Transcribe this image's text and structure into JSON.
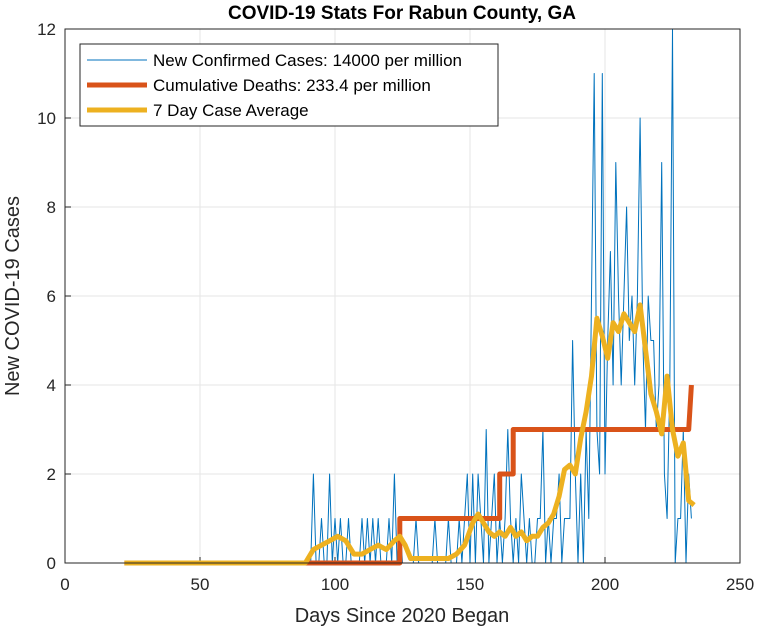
{
  "chart_data": {
    "type": "line",
    "title": "COVID-19 Stats For Rabun County, GA",
    "xlabel": "Days Since 2020 Began",
    "ylabel": "New COVID-19 Cases",
    "xlim": [
      0,
      250
    ],
    "ylim": [
      0,
      12
    ],
    "xticks": [
      0,
      50,
      100,
      150,
      200,
      250
    ],
    "yticks": [
      0,
      2,
      4,
      6,
      8,
      10,
      12
    ],
    "grid": true,
    "legend_position": "top-left",
    "series": [
      {
        "name": "New Confirmed Cases: 14000 per million",
        "color": "#0072BD",
        "width": 1,
        "x": [
          22,
          30,
          40,
          50,
          60,
          70,
          80,
          90,
          91,
          92,
          93,
          94,
          95,
          96,
          97,
          98,
          99,
          100,
          101,
          102,
          103,
          104,
          105,
          106,
          107,
          108,
          109,
          110,
          111,
          112,
          113,
          114,
          115,
          116,
          117,
          118,
          119,
          120,
          121,
          122,
          123,
          124,
          125,
          126,
          127,
          128,
          129,
          130,
          131,
          132,
          133,
          134,
          135,
          136,
          137,
          138,
          139,
          140,
          141,
          142,
          143,
          144,
          145,
          146,
          147,
          148,
          149,
          150,
          151,
          152,
          153,
          154,
          155,
          156,
          157,
          158,
          159,
          160,
          161,
          162,
          163,
          164,
          165,
          166,
          167,
          168,
          169,
          170,
          171,
          172,
          173,
          174,
          175,
          176,
          177,
          178,
          179,
          180,
          181,
          182,
          183,
          184,
          185,
          186,
          187,
          188,
          189,
          190,
          191,
          192,
          193,
          194,
          195,
          196,
          197,
          198,
          199,
          200,
          201,
          202,
          203,
          204,
          205,
          206,
          207,
          208,
          209,
          210,
          211,
          212,
          213,
          214,
          215,
          216,
          217,
          218,
          219,
          220,
          221,
          222,
          223,
          224,
          225,
          226,
          227,
          228,
          229,
          230,
          231,
          232
        ],
        "y": [
          0,
          0,
          0,
          0,
          0,
          0,
          0,
          0,
          0,
          2,
          0,
          0,
          1,
          0,
          0,
          2,
          0,
          1,
          0,
          1,
          0,
          0,
          1,
          0,
          0,
          0,
          0,
          1,
          0,
          1,
          0,
          1,
          0,
          1,
          0,
          0,
          0,
          1,
          0,
          2,
          0,
          1,
          0,
          0,
          0,
          0,
          0,
          1,
          0,
          0,
          0,
          0,
          0,
          0,
          1,
          0,
          0,
          0,
          0,
          1,
          0,
          0,
          0,
          1,
          0,
          1,
          2,
          0,
          2,
          0,
          2,
          1,
          0,
          3,
          0,
          1,
          2,
          0,
          1,
          0,
          1,
          3,
          1,
          0,
          1,
          0,
          2,
          1,
          0,
          1,
          0,
          0,
          1,
          1,
          3,
          0,
          1,
          0,
          1,
          1,
          2,
          0,
          1,
          1,
          1,
          5,
          2,
          0,
          2,
          0,
          3,
          1,
          6,
          11,
          3,
          2,
          11,
          2,
          5,
          7,
          4,
          9,
          6,
          4,
          6,
          8,
          5,
          6,
          4,
          6,
          10,
          5,
          3,
          6,
          5,
          5,
          3,
          4,
          9,
          2,
          1,
          4,
          12,
          0,
          1,
          1,
          3,
          0,
          2,
          1
        ],
        "note": "daily new cases"
      },
      {
        "name": "Cumulative Deaths: 233.4 per million",
        "color": "#D95319",
        "width": 5,
        "x": [
          22,
          124,
          124,
          161,
          161,
          166,
          166,
          231,
          232
        ],
        "y": [
          0,
          0,
          1,
          1,
          2,
          2,
          3,
          3,
          4
        ]
      },
      {
        "name": "7 Day Case Average",
        "color": "#EDB120",
        "width": 5,
        "x": [
          22,
          89,
          92,
          95,
          98,
          101,
          104,
          107,
          110,
          113,
          116,
          119,
          122,
          124,
          126,
          128,
          130,
          133,
          136,
          139,
          142,
          145,
          148,
          151,
          153,
          155,
          157,
          159,
          161,
          163,
          165,
          167,
          169,
          171,
          173,
          175,
          177,
          179,
          181,
          183,
          185,
          187,
          189,
          191,
          193,
          195,
          197,
          199,
          201,
          203,
          205,
          207,
          209,
          211,
          213,
          215,
          217,
          219,
          221,
          223,
          225,
          227,
          229,
          231,
          233
        ],
        "y": [
          0,
          0,
          0.3,
          0.4,
          0.5,
          0.6,
          0.5,
          0.2,
          0.2,
          0.3,
          0.4,
          0.3,
          0.5,
          0.6,
          0.4,
          0.1,
          0.1,
          0.1,
          0.1,
          0.1,
          0.1,
          0.2,
          0.4,
          0.9,
          1.1,
          0.9,
          0.7,
          0.6,
          0.7,
          0.6,
          0.8,
          0.6,
          0.7,
          0.5,
          0.6,
          0.6,
          0.8,
          0.9,
          1.1,
          1.5,
          2.1,
          2.2,
          2.0,
          2.8,
          3.4,
          4.2,
          5.5,
          5.1,
          4.6,
          5.4,
          5.2,
          5.6,
          5.4,
          5.2,
          5.8,
          4.8,
          3.8,
          3.4,
          2.9,
          4.2,
          3.0,
          2.4,
          2.7,
          1.4,
          1.3
        ]
      }
    ]
  }
}
